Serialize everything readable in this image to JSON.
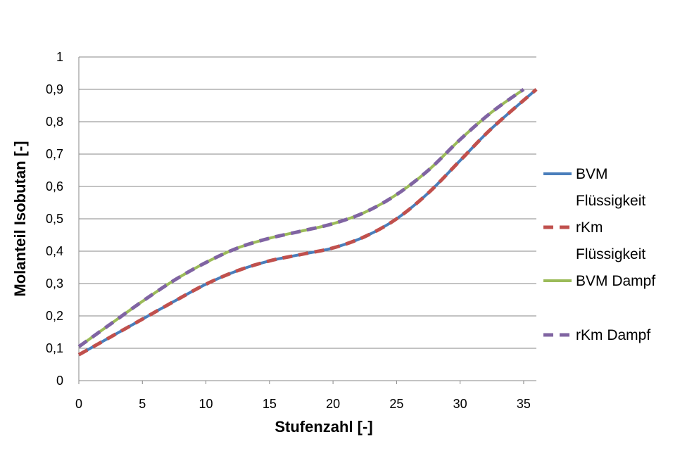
{
  "chart_data": {
    "type": "line",
    "xlabel": "Stufenzahl [-]",
    "ylabel": "Molanteil Isobutan [-]",
    "xlim": [
      0,
      36
    ],
    "ylim": [
      0,
      1
    ],
    "x_ticks": [
      "0",
      "5",
      "10",
      "15",
      "20",
      "25",
      "30",
      "35"
    ],
    "y_ticks": [
      "0",
      "0,1",
      "0,2",
      "0,3",
      "0,4",
      "0,5",
      "0,6",
      "0,7",
      "0,8",
      "0,9",
      "1"
    ],
    "grid": "horizontal",
    "legend_position": "right",
    "series": [
      {
        "name": "BVM Flüssigkeit",
        "legend_lines": [
          "BVM",
          "Flüssigkeit"
        ],
        "color": "#4a7ebb",
        "style": "solid",
        "x": [
          0,
          2.5,
          5,
          7.5,
          10,
          12.5,
          15,
          17.5,
          20,
          22.5,
          25,
          27.5,
          30,
          32.5,
          36
        ],
        "y": [
          0.08,
          0.135,
          0.19,
          0.245,
          0.298,
          0.34,
          0.37,
          0.39,
          0.41,
          0.445,
          0.5,
          0.58,
          0.68,
          0.78,
          0.9
        ]
      },
      {
        "name": "rKm Flüssigkeit",
        "legend_lines": [
          "rKm",
          "Flüssigkeit"
        ],
        "color": "#c0504d",
        "style": "dashed",
        "x": [
          0,
          2.5,
          5,
          7.5,
          10,
          12.5,
          15,
          17.5,
          20,
          22.5,
          25,
          27.5,
          30,
          32.5,
          36
        ],
        "y": [
          0.08,
          0.135,
          0.19,
          0.245,
          0.298,
          0.34,
          0.37,
          0.39,
          0.41,
          0.445,
          0.5,
          0.58,
          0.68,
          0.78,
          0.9
        ]
      },
      {
        "name": "BVM Dampf",
        "legend_lines": [
          "BVM Dampf"
        ],
        "color": "#9bbb59",
        "style": "solid",
        "x": [
          0,
          2.5,
          5,
          7.5,
          10,
          12.5,
          15,
          17.5,
          20,
          22.5,
          25,
          27.5,
          30,
          32.5,
          35
        ],
        "y": [
          0.105,
          0.175,
          0.245,
          0.31,
          0.365,
          0.41,
          0.44,
          0.462,
          0.485,
          0.52,
          0.575,
          0.65,
          0.745,
          0.83,
          0.9
        ]
      },
      {
        "name": "rKm Dampf",
        "legend_lines": [
          "rKm Dampf"
        ],
        "color": "#8064a2",
        "style": "dashed",
        "x": [
          0,
          2.5,
          5,
          7.5,
          10,
          12.5,
          15,
          17.5,
          20,
          22.5,
          25,
          27.5,
          30,
          32.5,
          35
        ],
        "y": [
          0.105,
          0.175,
          0.245,
          0.31,
          0.365,
          0.41,
          0.44,
          0.462,
          0.485,
          0.52,
          0.575,
          0.65,
          0.745,
          0.83,
          0.9
        ]
      }
    ]
  }
}
